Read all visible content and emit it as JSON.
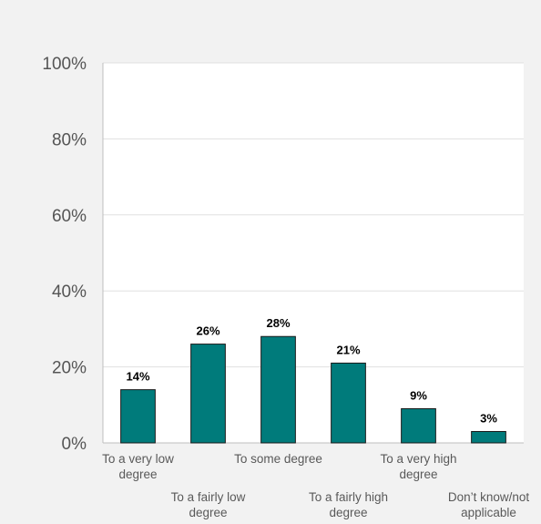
{
  "chart_data": {
    "type": "bar",
    "categories": [
      [
        "To a very low",
        "degree"
      ],
      [
        "To a fairly low",
        "degree"
      ],
      [
        "To some degree"
      ],
      [
        "To a fairly high",
        "degree"
      ],
      [
        "To a very high",
        "degree"
      ],
      [
        "Don’t know/not",
        "applicable"
      ]
    ],
    "values": [
      14,
      26,
      28,
      21,
      9,
      3
    ],
    "value_labels": [
      "14%",
      "26%",
      "28%",
      "21%",
      "9%",
      "3%"
    ],
    "y_ticks": [
      0,
      20,
      40,
      60,
      80,
      100
    ],
    "y_tick_labels": [
      "0%",
      "20%",
      "40%",
      "60%",
      "80%",
      "100%"
    ],
    "ylim": [
      0,
      100
    ],
    "title": "",
    "xlabel": "",
    "ylabel": "",
    "grid": true,
    "legend": "none",
    "colors": {
      "bar": "#007b7b",
      "bar_edge": "#1a1a1a",
      "plot_background": "#ffffff",
      "page_background": "#f2f2f2",
      "grid": "#e0e0e0"
    }
  }
}
